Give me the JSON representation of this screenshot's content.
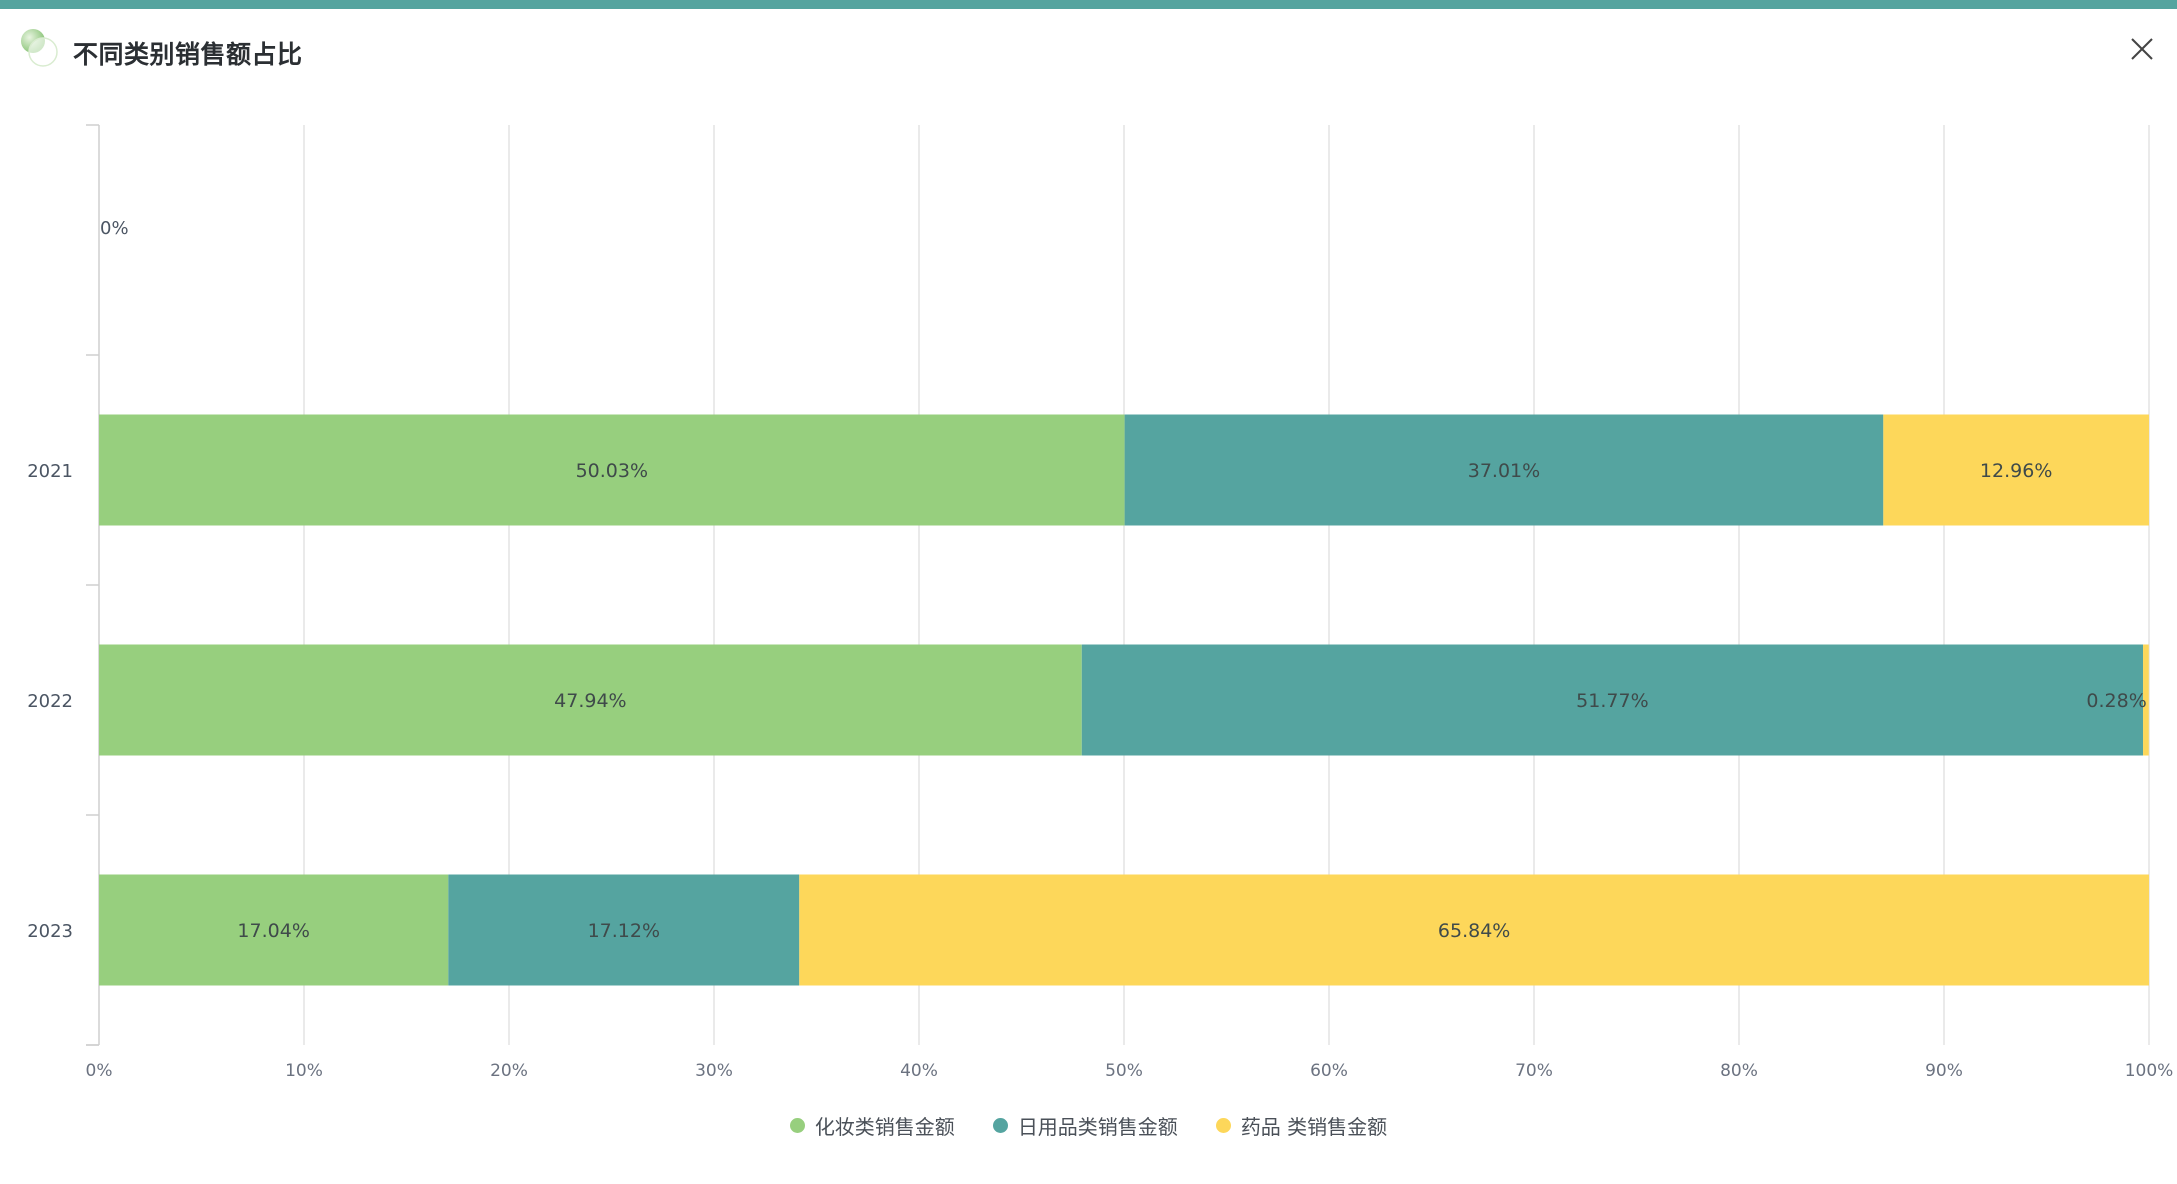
{
  "header": {
    "title": "不同类别销售额占比",
    "close_icon": "close-icon",
    "logo_icon": "bubbles-icon"
  },
  "colors": {
    "stripe": "#55a49f",
    "cosmetics": "#97cf7e",
    "daily": "#55a4a0",
    "medicine": "#fdd75a"
  },
  "chart_data": {
    "type": "bar",
    "orientation": "horizontal",
    "stacked": true,
    "percent": true,
    "title": "不同类别销售额占比",
    "categories": [
      "",
      "2021",
      "2022",
      "2023"
    ],
    "category_labels": [
      "",
      "2021",
      "2022",
      "2023"
    ],
    "empty_label": "0%",
    "series": [
      {
        "name": "化妆类销售金额",
        "color": "#97cf7e",
        "values": [
          0,
          50.03,
          47.94,
          17.04
        ],
        "labels": [
          "",
          "50.03%",
          "47.94%",
          "17.04%"
        ]
      },
      {
        "name": "日用品类销售金额",
        "color": "#55a4a0",
        "values": [
          0,
          37.01,
          51.77,
          17.12
        ],
        "labels": [
          "",
          "37.01%",
          "51.77%",
          "17.12%"
        ]
      },
      {
        "name": "药品 类销售金额",
        "color": "#fdd75a",
        "values": [
          0,
          12.96,
          0.28,
          65.84
        ],
        "labels": [
          "",
          "12.96%",
          "0.28%",
          "65.84%"
        ]
      }
    ],
    "xlim": [
      0,
      100
    ],
    "xticks": [
      "0%",
      "10%",
      "20%",
      "30%",
      "40%",
      "50%",
      "60%",
      "70%",
      "80%",
      "90%",
      "100%"
    ],
    "grid": true,
    "legend_position": "bottom-center"
  }
}
